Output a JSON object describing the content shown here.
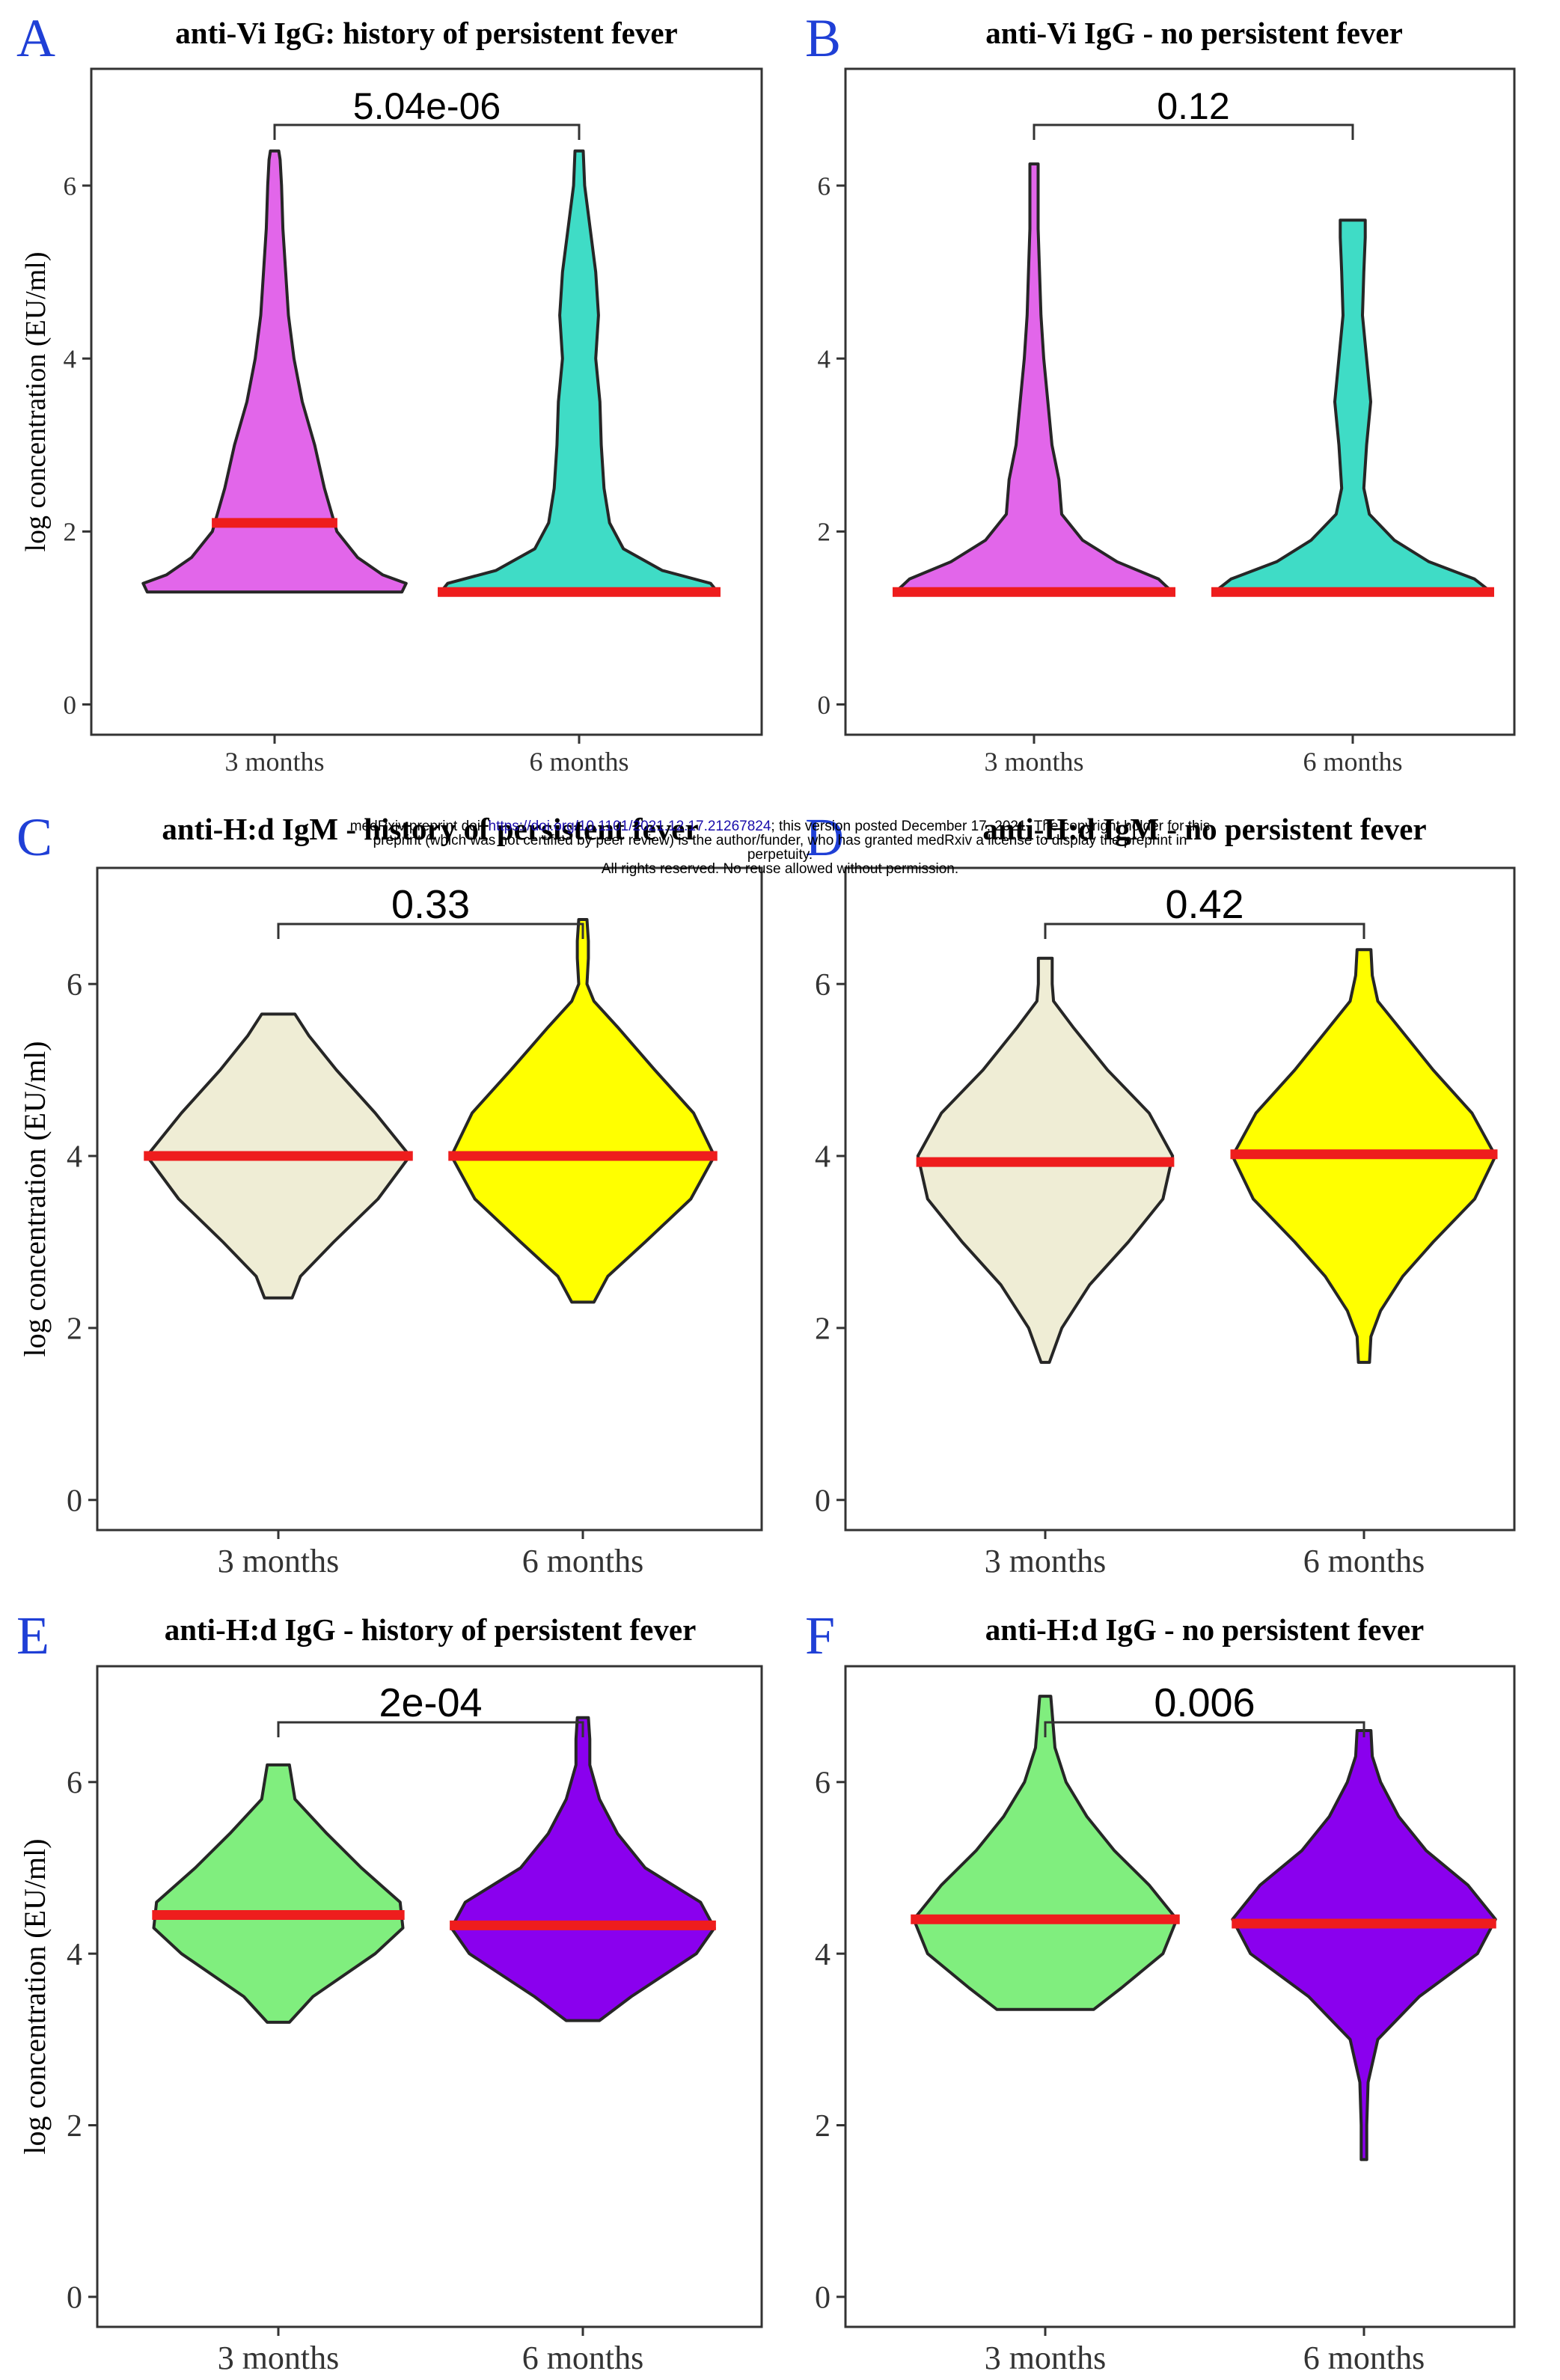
{
  "colors": {
    "letter": "#1f3fd6",
    "median": "#ee1d1d",
    "outline": "#262626",
    "vi_3m": "#e266ea",
    "vi_6m": "#3fdcc6",
    "hd_igm_3m": "#efedd5",
    "hd_igm_6m": "#ffff00",
    "hd_igg_3m": "#80ee7e",
    "hd_igg_6m": "#8a00ee"
  },
  "preprint_notice": {
    "line1_prefix": "medRxiv preprint doi:",
    "doi_link": "https://doi.org/10.1101/2021.12.17.21267824",
    "line1_suffix": "; this version posted December 17, 2021. The copyright holder for this",
    "line2": "preprint (which was not certified by peer review) is the author/funder, who has granted medRxiv a license to display the preprint in",
    "line3": "perpetuity.",
    "line4": "All rights reserved. No reuse allowed without permission."
  },
  "chart_data": [
    {
      "type": "violin",
      "panel": "A",
      "title": "anti-Vi IgG: history of persistent fever",
      "ylabel": "log concentration (EU/ml)",
      "ylim": [
        -0.35,
        7.35
      ],
      "yticks": [
        "0",
        "2",
        "4",
        "6"
      ],
      "categories": [
        "3 months",
        "6 months"
      ],
      "p_value": "5.04e-06",
      "series": [
        {
          "category": "3 months",
          "min": 1.3,
          "max": 6.4,
          "median": 2.1,
          "fill": "vi_3m",
          "profile": [
            [
              1.3,
              0.92
            ],
            [
              1.4,
              0.95
            ],
            [
              1.5,
              0.78
            ],
            [
              1.7,
              0.6
            ],
            [
              2.0,
              0.45
            ],
            [
              2.5,
              0.36
            ],
            [
              3.0,
              0.29
            ],
            [
              3.5,
              0.2
            ],
            [
              4.0,
              0.14
            ],
            [
              4.5,
              0.1
            ],
            [
              5.0,
              0.08
            ],
            [
              5.5,
              0.06
            ],
            [
              6.0,
              0.05
            ],
            [
              6.3,
              0.04
            ],
            [
              6.4,
              0.03
            ]
          ]
        },
        {
          "category": "6 months",
          "min": 1.3,
          "max": 6.4,
          "median": 1.3,
          "fill": "vi_6m",
          "profile": [
            [
              1.3,
              1.0
            ],
            [
              1.4,
              0.95
            ],
            [
              1.55,
              0.6
            ],
            [
              1.8,
              0.32
            ],
            [
              2.1,
              0.22
            ],
            [
              2.5,
              0.18
            ],
            [
              3.0,
              0.16
            ],
            [
              3.5,
              0.15
            ],
            [
              4.0,
              0.12
            ],
            [
              4.5,
              0.14
            ],
            [
              5.0,
              0.12
            ],
            [
              5.5,
              0.08
            ],
            [
              6.0,
              0.04
            ],
            [
              6.4,
              0.03
            ]
          ]
        }
      ]
    },
    {
      "type": "violin",
      "panel": "B",
      "title": "anti-Vi IgG - no persistent fever",
      "ylabel": "",
      "ylim": [
        -0.35,
        7.35
      ],
      "yticks": [
        "0",
        "2",
        "4",
        "6"
      ],
      "categories": [
        "3 months",
        "6 months"
      ],
      "p_value": "0.12",
      "series": [
        {
          "category": "3 months",
          "min": 1.3,
          "max": 6.25,
          "median": 1.3,
          "fill": "vi_3m",
          "profile": [
            [
              1.3,
              1.0
            ],
            [
              1.45,
              0.9
            ],
            [
              1.65,
              0.6
            ],
            [
              1.9,
              0.35
            ],
            [
              2.2,
              0.2
            ],
            [
              2.6,
              0.18
            ],
            [
              3.0,
              0.13
            ],
            [
              3.5,
              0.1
            ],
            [
              4.0,
              0.07
            ],
            [
              4.5,
              0.05
            ],
            [
              5.0,
              0.04
            ],
            [
              5.5,
              0.03
            ],
            [
              6.0,
              0.03
            ],
            [
              6.25,
              0.03
            ]
          ]
        },
        {
          "category": "6 months",
          "min": 1.3,
          "max": 5.6,
          "median": 1.3,
          "fill": "vi_6m",
          "profile": [
            [
              1.3,
              1.0
            ],
            [
              1.45,
              0.88
            ],
            [
              1.65,
              0.55
            ],
            [
              1.9,
              0.3
            ],
            [
              2.2,
              0.12
            ],
            [
              2.5,
              0.08
            ],
            [
              3.0,
              0.1
            ],
            [
              3.5,
              0.13
            ],
            [
              4.0,
              0.1
            ],
            [
              4.5,
              0.07
            ],
            [
              5.0,
              0.08
            ],
            [
              5.4,
              0.09
            ],
            [
              5.6,
              0.09
            ]
          ]
        }
      ]
    },
    {
      "type": "violin",
      "panel": "C",
      "title": "anti-H:d IgM - history of persistent fever",
      "ylabel": "log concentration (EU/ml)",
      "ylim": [
        -0.35,
        7.35
      ],
      "yticks": [
        "0",
        "2",
        "4",
        "6"
      ],
      "categories": [
        "3 months",
        "6 months"
      ],
      "p_value": "0.33",
      "series": [
        {
          "category": "3 months",
          "min": 2.35,
          "max": 5.65,
          "median": 4.0,
          "fill": "hd_igm_3m",
          "profile": [
            [
              2.35,
              0.1
            ],
            [
              2.6,
              0.16
            ],
            [
              3.0,
              0.4
            ],
            [
              3.5,
              0.72
            ],
            [
              4.0,
              0.95
            ],
            [
              4.5,
              0.7
            ],
            [
              5.0,
              0.42
            ],
            [
              5.4,
              0.22
            ],
            [
              5.65,
              0.12
            ]
          ]
        },
        {
          "category": "6 months",
          "min": 2.3,
          "max": 6.75,
          "median": 4.0,
          "fill": "hd_igm_6m",
          "profile": [
            [
              2.3,
              0.08
            ],
            [
              2.6,
              0.18
            ],
            [
              3.0,
              0.45
            ],
            [
              3.5,
              0.78
            ],
            [
              4.0,
              0.95
            ],
            [
              4.5,
              0.8
            ],
            [
              5.0,
              0.52
            ],
            [
              5.5,
              0.25
            ],
            [
              5.8,
              0.08
            ],
            [
              6.0,
              0.03
            ],
            [
              6.3,
              0.04
            ],
            [
              6.5,
              0.04
            ],
            [
              6.75,
              0.03
            ]
          ]
        }
      ]
    },
    {
      "type": "violin",
      "panel": "D",
      "title": "anti-H:d IgM - no persistent fever",
      "ylabel": "",
      "ylim": [
        -0.35,
        7.35
      ],
      "yticks": [
        "0",
        "2",
        "4",
        "6"
      ],
      "categories": [
        "3 months",
        "6 months"
      ],
      "p_value": "0.42",
      "series": [
        {
          "category": "3 months",
          "min": 1.6,
          "max": 6.3,
          "median": 3.93,
          "fill": "hd_igm_3m",
          "profile": [
            [
              1.6,
              0.03
            ],
            [
              2.0,
              0.12
            ],
            [
              2.5,
              0.32
            ],
            [
              3.0,
              0.6
            ],
            [
              3.5,
              0.85
            ],
            [
              4.0,
              0.92
            ],
            [
              4.5,
              0.75
            ],
            [
              5.0,
              0.45
            ],
            [
              5.5,
              0.2
            ],
            [
              5.8,
              0.06
            ],
            [
              6.0,
              0.05
            ],
            [
              6.3,
              0.05
            ]
          ]
        },
        {
          "category": "6 months",
          "min": 1.6,
          "max": 6.4,
          "median": 4.02,
          "fill": "hd_igm_6m",
          "profile": [
            [
              1.6,
              0.04
            ],
            [
              1.9,
              0.05
            ],
            [
              2.2,
              0.12
            ],
            [
              2.6,
              0.28
            ],
            [
              3.0,
              0.5
            ],
            [
              3.5,
              0.8
            ],
            [
              4.0,
              0.95
            ],
            [
              4.5,
              0.78
            ],
            [
              5.0,
              0.5
            ],
            [
              5.5,
              0.25
            ],
            [
              5.8,
              0.1
            ],
            [
              6.1,
              0.06
            ],
            [
              6.4,
              0.05
            ]
          ]
        }
      ]
    },
    {
      "type": "violin",
      "panel": "E",
      "title": "anti-H:d IgG - history of persistent fever",
      "ylabel": "log concentration (EU/ml)",
      "ylim": [
        -0.35,
        7.35
      ],
      "yticks": [
        "0",
        "2",
        "4",
        "6"
      ],
      "categories": [
        "3 months",
        "6 months"
      ],
      "p_value": "2e-04",
      "series": [
        {
          "category": "3 months",
          "min": 3.2,
          "max": 6.2,
          "median": 4.45,
          "fill": "hd_igg_3m",
          "profile": [
            [
              3.2,
              0.08
            ],
            [
              3.5,
              0.25
            ],
            [
              4.0,
              0.7
            ],
            [
              4.3,
              0.9
            ],
            [
              4.6,
              0.88
            ],
            [
              5.0,
              0.6
            ],
            [
              5.4,
              0.35
            ],
            [
              5.8,
              0.12
            ],
            [
              6.2,
              0.08
            ]
          ]
        },
        {
          "category": "6 months",
          "min": 3.22,
          "max": 6.75,
          "median": 4.33,
          "fill": "hd_igg_6m",
          "profile": [
            [
              3.22,
              0.12
            ],
            [
              3.5,
              0.35
            ],
            [
              4.0,
              0.82
            ],
            [
              4.3,
              0.95
            ],
            [
              4.6,
              0.85
            ],
            [
              5.0,
              0.45
            ],
            [
              5.4,
              0.25
            ],
            [
              5.8,
              0.12
            ],
            [
              6.2,
              0.05
            ],
            [
              6.5,
              0.05
            ],
            [
              6.75,
              0.04
            ]
          ]
        }
      ]
    },
    {
      "type": "violin",
      "panel": "F",
      "title": "anti-H:d IgG - no persistent fever",
      "ylabel": "",
      "ylim": [
        -0.35,
        7.35
      ],
      "yticks": [
        "0",
        "2",
        "4",
        "6"
      ],
      "categories": [
        "3 months",
        "6 months"
      ],
      "p_value": "0.006",
      "series": [
        {
          "category": "3 months",
          "min": 3.35,
          "max": 7.0,
          "median": 4.4,
          "fill": "hd_igg_3m",
          "profile": [
            [
              3.35,
              0.35
            ],
            [
              3.6,
              0.55
            ],
            [
              4.0,
              0.85
            ],
            [
              4.4,
              0.95
            ],
            [
              4.8,
              0.75
            ],
            [
              5.2,
              0.5
            ],
            [
              5.6,
              0.3
            ],
            [
              6.0,
              0.15
            ],
            [
              6.4,
              0.07
            ],
            [
              6.8,
              0.05
            ],
            [
              7.0,
              0.04
            ]
          ]
        },
        {
          "category": "6 months",
          "min": 1.6,
          "max": 6.6,
          "median": 4.35,
          "fill": "hd_igg_6m",
          "profile": [
            [
              1.6,
              0.02
            ],
            [
              2.0,
              0.02
            ],
            [
              2.5,
              0.03
            ],
            [
              3.0,
              0.1
            ],
            [
              3.5,
              0.4
            ],
            [
              4.0,
              0.82
            ],
            [
              4.4,
              0.95
            ],
            [
              4.8,
              0.75
            ],
            [
              5.2,
              0.45
            ],
            [
              5.6,
              0.25
            ],
            [
              6.0,
              0.12
            ],
            [
              6.3,
              0.06
            ],
            [
              6.6,
              0.05
            ]
          ]
        }
      ]
    }
  ]
}
